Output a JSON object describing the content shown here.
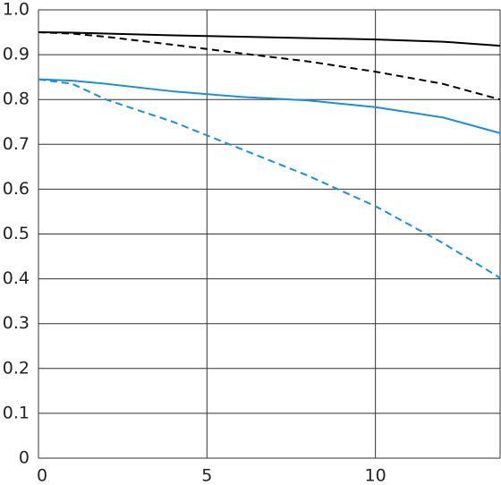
{
  "chart_data": {
    "type": "line",
    "x": [
      0,
      1,
      2,
      4,
      6,
      8,
      10,
      12,
      13.7
    ],
    "series": [
      {
        "color": "#000000",
        "dashed": false,
        "values": [
          0.95,
          0.949,
          0.947,
          0.943,
          0.94,
          0.937,
          0.934,
          0.929,
          0.92
        ]
      },
      {
        "color": "#000000",
        "dashed": true,
        "values": [
          0.95,
          0.947,
          0.94,
          0.922,
          0.903,
          0.885,
          0.862,
          0.835,
          0.8
        ]
      },
      {
        "color": "#1a8fe0",
        "dashed": false,
        "values": [
          0.845,
          0.842,
          0.835,
          0.818,
          0.806,
          0.798,
          0.783,
          0.76,
          0.725
        ]
      },
      {
        "color": "#1a8fe0",
        "dashed": true,
        "values": [
          0.845,
          0.835,
          0.8,
          0.75,
          0.69,
          0.63,
          0.562,
          0.48,
          0.402
        ]
      }
    ],
    "xlim": [
      0,
      13.7
    ],
    "xticks": [
      0,
      5,
      10
    ],
    "ylim": [
      0,
      1
    ],
    "yticks": [
      0,
      0.1,
      0.2,
      0.3,
      0.4,
      0.5,
      0.6,
      0.7,
      0.8,
      0.9,
      {
        "value": 1,
        "label": "1.0"
      }
    ],
    "grid": true
  }
}
